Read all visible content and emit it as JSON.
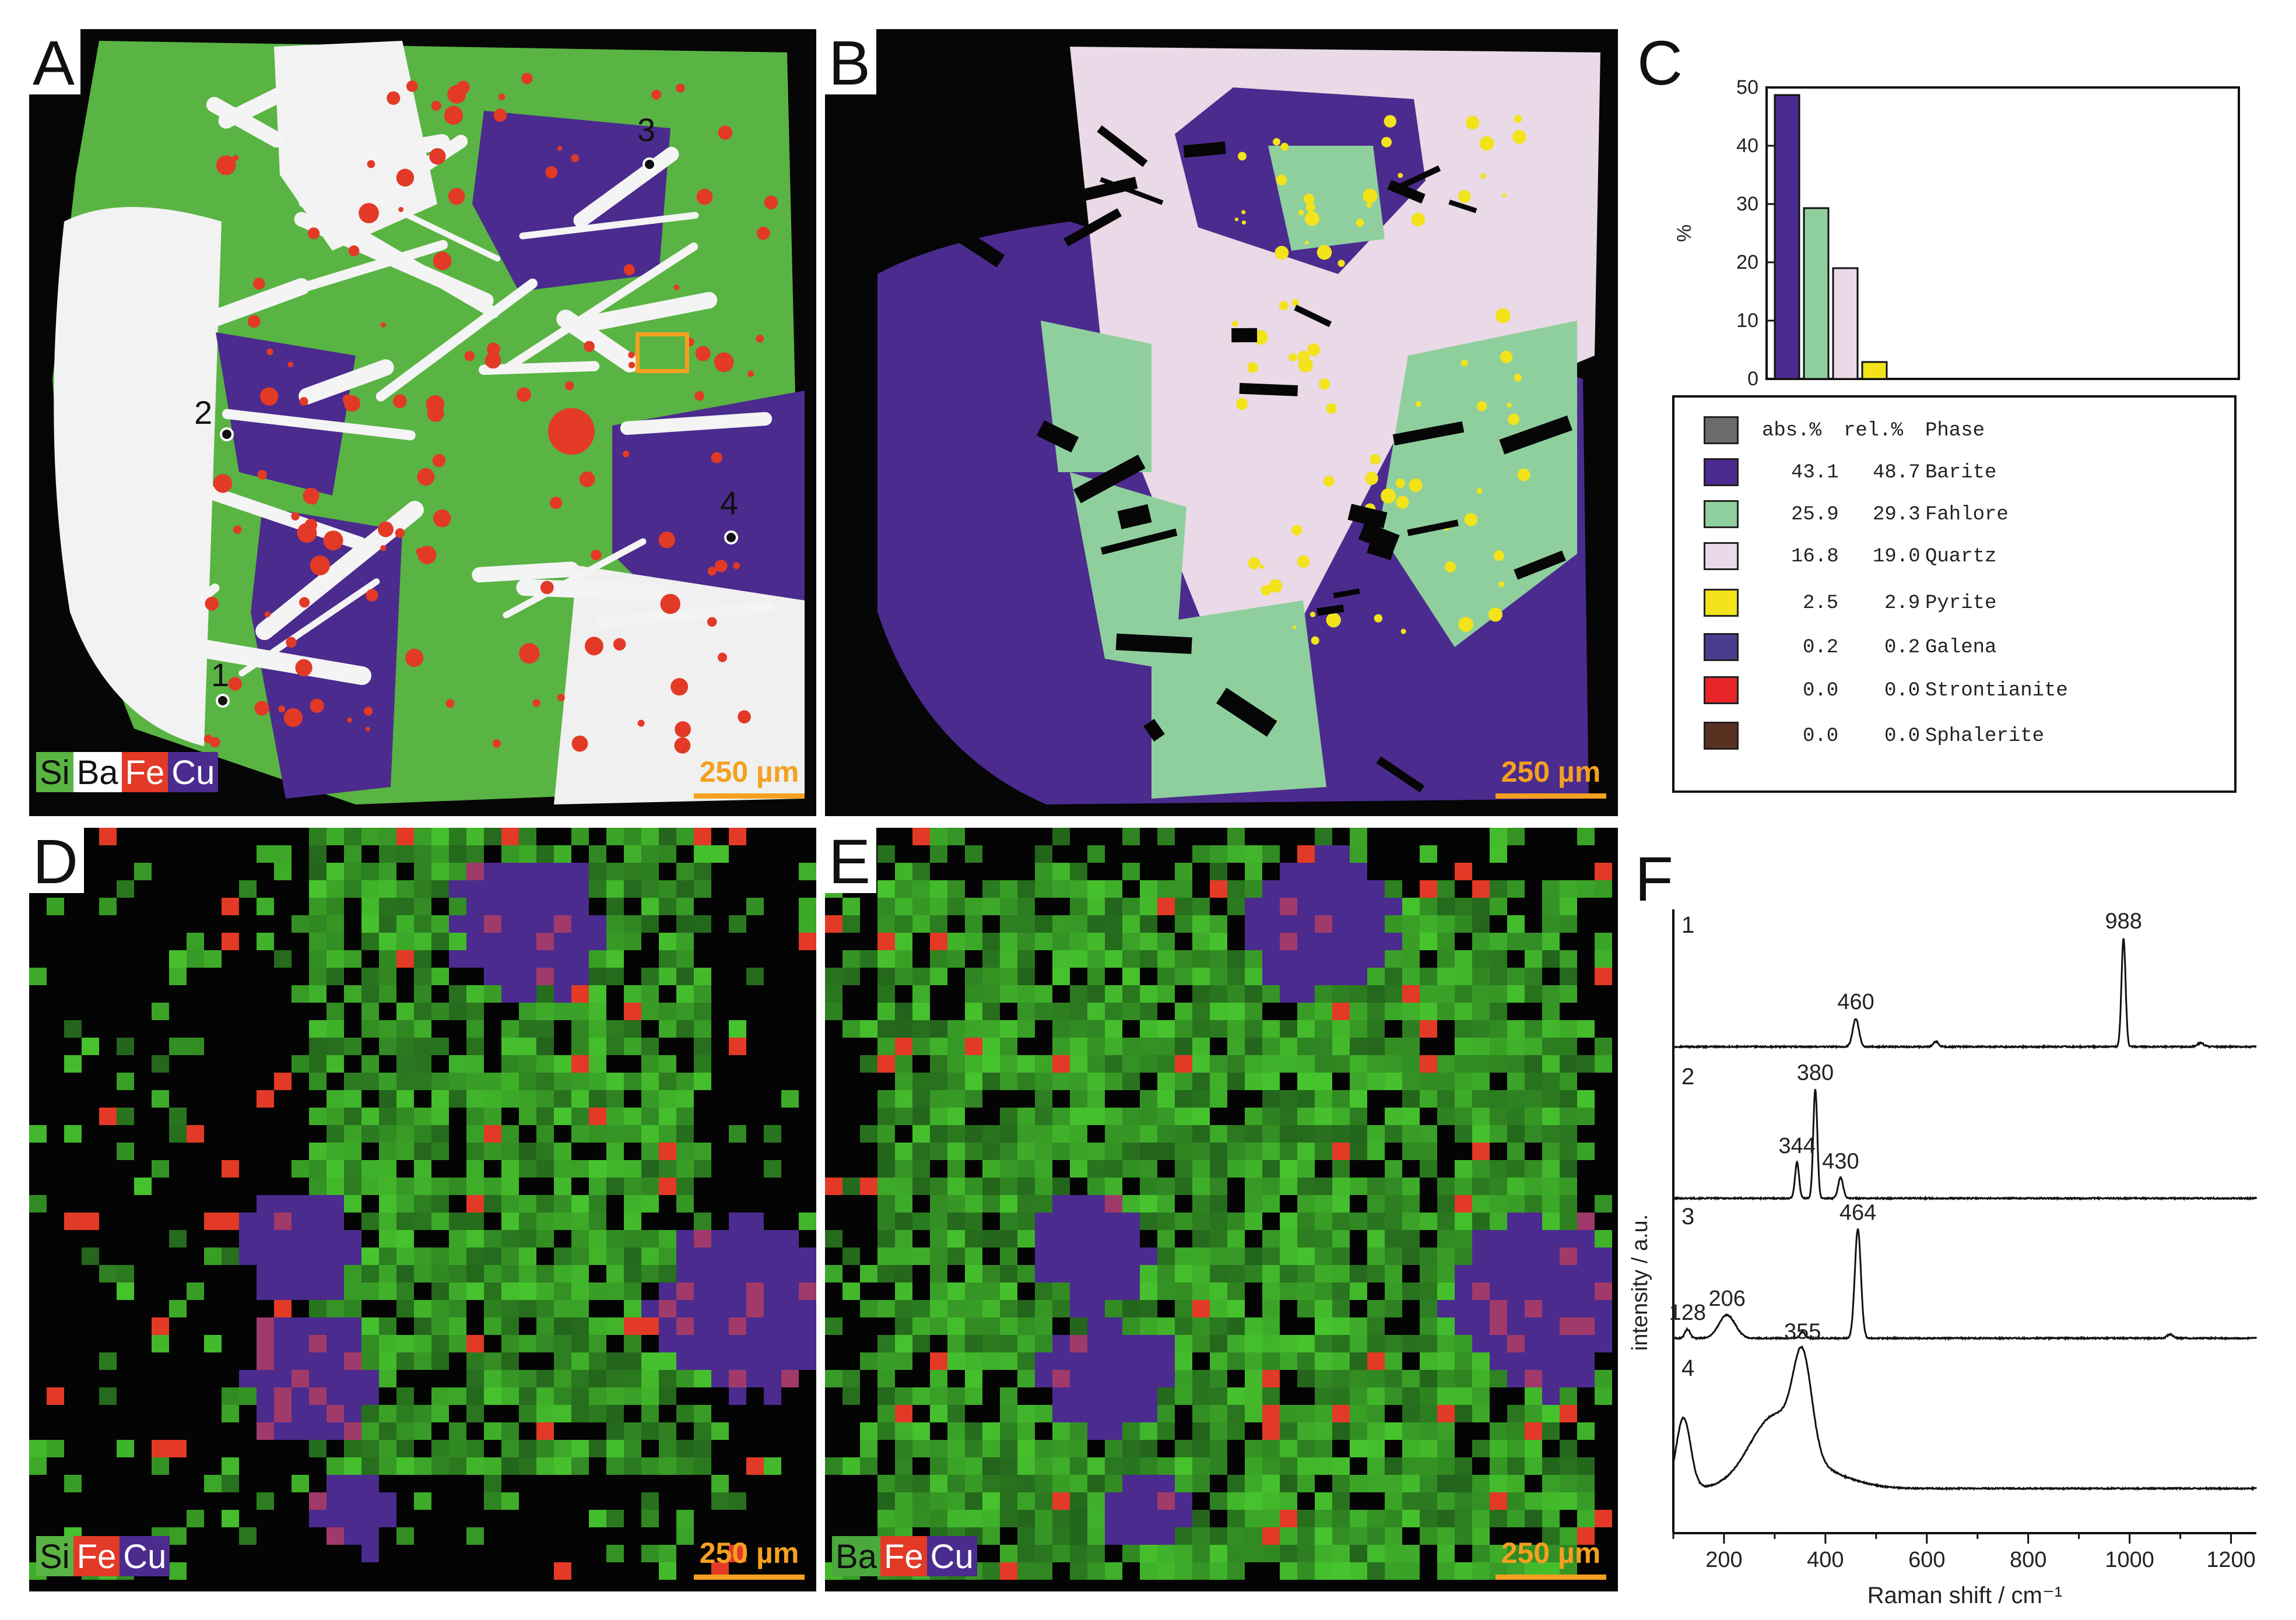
{
  "panels": {
    "a": {
      "label": "A",
      "scale": "250 µm",
      "chips": [
        "Si",
        "Ba",
        "Fe",
        "Cu"
      ],
      "points": [
        "1",
        "2",
        "3",
        "4"
      ]
    },
    "b": {
      "label": "B",
      "scale": "250 µm"
    },
    "c": {
      "label": "C"
    },
    "d": {
      "label": "D",
      "scale": "250 µm",
      "chips": [
        "Si",
        "Fe",
        "Cu"
      ]
    },
    "e": {
      "label": "E",
      "scale": "250 µm",
      "chips": [
        "Ba",
        "Fe",
        "Cu"
      ]
    },
    "f": {
      "label": "F"
    }
  },
  "colors": {
    "silicon": "#5ab443",
    "barium": "#f2f2f2",
    "iron": "#e23a26",
    "copper": "#4b2b8e",
    "scale_bar": "#f5a020",
    "barite": "#4b2b8e",
    "fahlore": "#8fcf9e",
    "quartz": "#ead9e6",
    "pyrite": "#f2e31a"
  },
  "phase_table": {
    "header": {
      "abs": "abs.%",
      "rel": "rel.%",
      "phase": "Phase",
      "color": "#6b6b6b"
    },
    "rows": [
      {
        "abs": "43.1",
        "rel": "48.7",
        "phase": "Barite",
        "color": "#4b2b8e"
      },
      {
        "abs": "25.9",
        "rel": "29.3",
        "phase": "Fahlore",
        "color": "#8fcf9e"
      },
      {
        "abs": "16.8",
        "rel": "19.0",
        "phase": "Quartz",
        "color": "#ead9e6"
      },
      {
        "abs": "2.5",
        "rel": "2.9",
        "phase": "Pyrite",
        "color": "#f2e31a"
      },
      {
        "abs": "0.2",
        "rel": "0.2",
        "phase": "Galena",
        "color": "#4a3d8f"
      },
      {
        "abs": "0.0",
        "rel": "0.0",
        "phase": "Strontianite",
        "color": "#e8262a"
      },
      {
        "abs": "0.0",
        "rel": "0.0",
        "phase": "Sphalerite",
        "color": "#5a3120"
      }
    ]
  },
  "chart_data": [
    {
      "type": "bar",
      "panel": "C",
      "categories": [
        "Barite",
        "Fahlore",
        "Quartz",
        "Pyrite"
      ],
      "values": [
        48.7,
        29.3,
        19.0,
        2.9
      ],
      "colors": [
        "#4b2b8e",
        "#8fcf9e",
        "#ead9e6",
        "#f2e31a"
      ],
      "ylabel": "%",
      "ylim": [
        0,
        50
      ],
      "yticks": [
        0,
        10,
        20,
        30,
        40,
        50
      ]
    },
    {
      "type": "line",
      "panel": "F",
      "xlabel": "Raman shift / cm⁻¹",
      "ylabel": "intensity / a.u.",
      "xlim": [
        100,
        1250
      ],
      "xticks": [
        200,
        400,
        600,
        800,
        1000,
        1200
      ],
      "series": [
        {
          "id": "1",
          "baseline": 0.02,
          "peaks": [
            {
              "x": 460,
              "h": 0.22,
              "w": 6,
              "label": "460"
            },
            {
              "x": 618,
              "h": 0.04,
              "w": 5
            },
            {
              "x": 988,
              "h": 0.85,
              "w": 4,
              "label": "988"
            },
            {
              "x": 1140,
              "h": 0.03,
              "w": 6
            }
          ]
        },
        {
          "id": "2",
          "baseline": 0.02,
          "peaks": [
            {
              "x": 344,
              "h": 0.28,
              "w": 4,
              "label": "344"
            },
            {
              "x": 380,
              "h": 0.85,
              "w": 4,
              "label": "380"
            },
            {
              "x": 430,
              "h": 0.16,
              "w": 5,
              "label": "430"
            }
          ]
        },
        {
          "id": "3",
          "baseline": 0.02,
          "peaks": [
            {
              "x": 128,
              "h": 0.07,
              "w": 5,
              "label": "128"
            },
            {
              "x": 206,
              "h": 0.18,
              "w": 16,
              "label": "206"
            },
            {
              "x": 355,
              "h": 0.05,
              "w": 5
            },
            {
              "x": 464,
              "h": 0.85,
              "w": 6,
              "label": "464"
            },
            {
              "x": 1080,
              "h": 0.03,
              "w": 6
            }
          ]
        },
        {
          "id": "4",
          "baseline": 0.03,
          "peaks": [
            {
              "x": 120,
              "h": 0.55,
              "w": 14
            },
            {
              "x": 300,
              "h": 0.55,
              "w": 50
            },
            {
              "x": 355,
              "h": 0.72,
              "w": 18,
              "label": "355"
            },
            {
              "x": 400,
              "h": 0.1,
              "w": 60
            }
          ]
        }
      ]
    }
  ]
}
